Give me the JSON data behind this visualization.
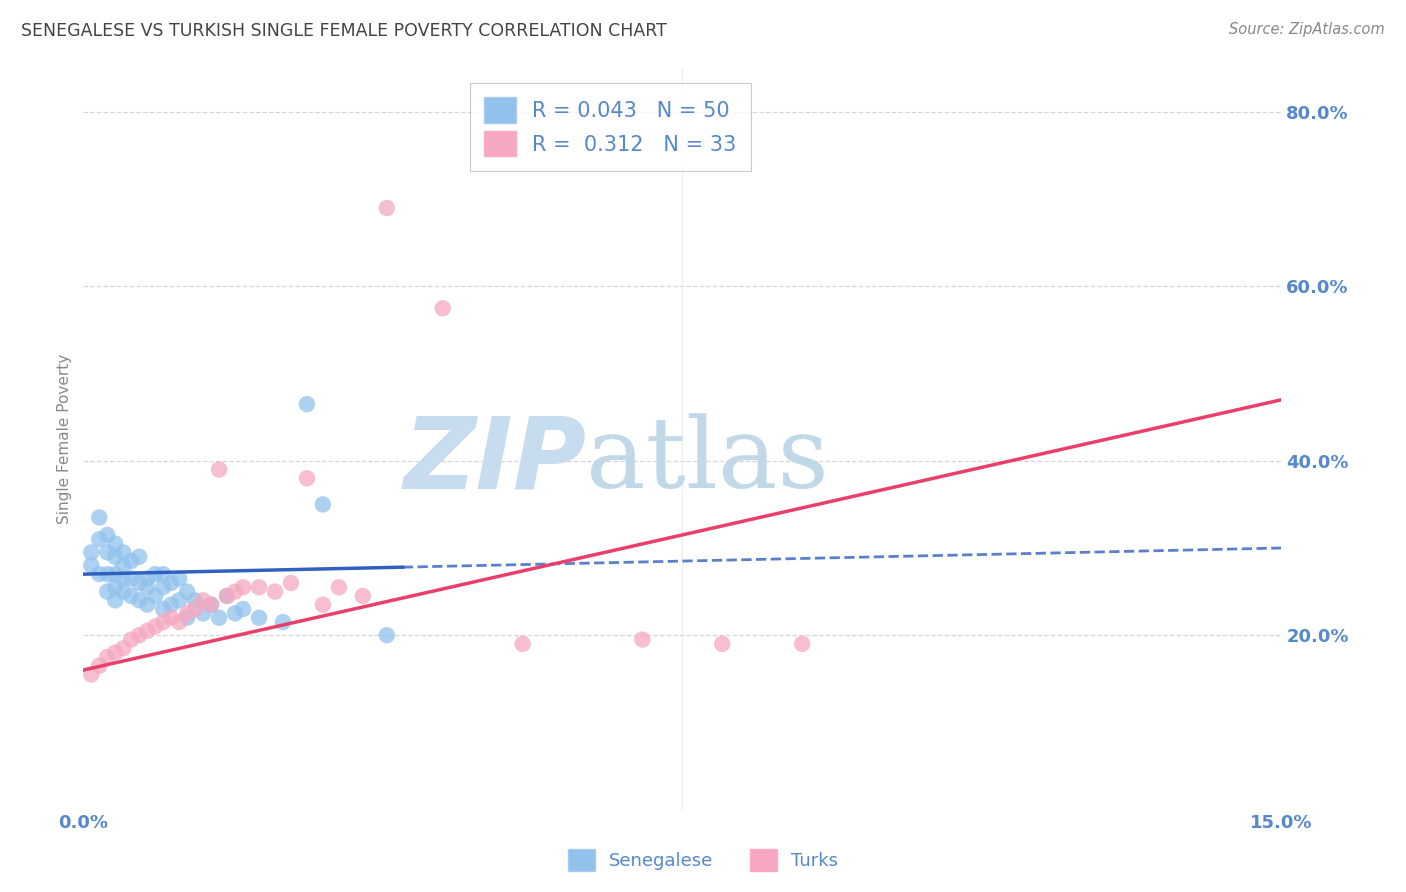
{
  "title": "SENEGALESE VS TURKISH SINGLE FEMALE POVERTY CORRELATION CHART",
  "source": "Source: ZipAtlas.com",
  "ylabel": "Single Female Poverty",
  "xlim": [
    0.0,
    0.15
  ],
  "ylim": [
    0.0,
    0.85
  ],
  "ytick_labels_right": [
    "20.0%",
    "40.0%",
    "60.0%",
    "80.0%"
  ],
  "ytick_values_right": [
    0.2,
    0.4,
    0.6,
    0.8
  ],
  "legend_r1": "R = 0.043",
  "legend_n1": "N = 50",
  "legend_r2": "R = 0.312",
  "legend_n2": "N = 33",
  "blue_color": "#92C2EC",
  "pink_color": "#F5A8C0",
  "blue_line_color": "#3060C0",
  "pink_line_color": "#E8406A",
  "watermark_zip": "ZIP",
  "watermark_atlas": "atlas",
  "watermark_color_zip": "#C8DCF0",
  "watermark_color_atlas": "#C0D8E8",
  "background_color": "#FFFFFF",
  "grid_color": "#CCCCCC",
  "title_color": "#444444",
  "axis_label_color": "#5588CC",
  "senegalese_x": [
    0.001,
    0.001,
    0.002,
    0.002,
    0.002,
    0.003,
    0.003,
    0.003,
    0.003,
    0.004,
    0.004,
    0.004,
    0.004,
    0.004,
    0.005,
    0.005,
    0.005,
    0.005,
    0.006,
    0.006,
    0.006,
    0.007,
    0.007,
    0.007,
    0.008,
    0.008,
    0.008,
    0.009,
    0.009,
    0.01,
    0.01,
    0.01,
    0.011,
    0.011,
    0.012,
    0.012,
    0.013,
    0.013,
    0.014,
    0.015,
    0.016,
    0.017,
    0.018,
    0.019,
    0.02,
    0.022,
    0.025,
    0.028,
    0.03,
    0.038
  ],
  "senegalese_y": [
    0.295,
    0.28,
    0.335,
    0.31,
    0.27,
    0.315,
    0.295,
    0.27,
    0.25,
    0.305,
    0.29,
    0.27,
    0.255,
    0.24,
    0.295,
    0.28,
    0.265,
    0.25,
    0.285,
    0.265,
    0.245,
    0.29,
    0.26,
    0.24,
    0.265,
    0.255,
    0.235,
    0.27,
    0.245,
    0.27,
    0.255,
    0.23,
    0.26,
    0.235,
    0.265,
    0.24,
    0.25,
    0.22,
    0.24,
    0.225,
    0.235,
    0.22,
    0.245,
    0.225,
    0.23,
    0.22,
    0.215,
    0.465,
    0.35,
    0.2
  ],
  "turks_x": [
    0.001,
    0.002,
    0.003,
    0.004,
    0.005,
    0.006,
    0.007,
    0.008,
    0.009,
    0.01,
    0.011,
    0.012,
    0.013,
    0.014,
    0.015,
    0.016,
    0.017,
    0.018,
    0.019,
    0.02,
    0.022,
    0.024,
    0.026,
    0.028,
    0.03,
    0.032,
    0.035,
    0.038,
    0.045,
    0.055,
    0.07,
    0.08,
    0.09
  ],
  "turks_y": [
    0.155,
    0.165,
    0.175,
    0.18,
    0.185,
    0.195,
    0.2,
    0.205,
    0.21,
    0.215,
    0.22,
    0.215,
    0.225,
    0.23,
    0.24,
    0.235,
    0.39,
    0.245,
    0.25,
    0.255,
    0.255,
    0.25,
    0.26,
    0.38,
    0.235,
    0.255,
    0.245,
    0.69,
    0.575,
    0.19,
    0.195,
    0.19,
    0.19
  ],
  "senegalese_trend_x0": 0.0,
  "senegalese_trend_x_solid_end": 0.04,
  "senegalese_trend_x1": 0.15,
  "senegalese_trend_y0": 0.27,
  "senegalese_trend_y1": 0.3,
  "turks_trend_x0": 0.0,
  "turks_trend_x1": 0.15,
  "turks_trend_y0": 0.16,
  "turks_trend_y1": 0.47
}
